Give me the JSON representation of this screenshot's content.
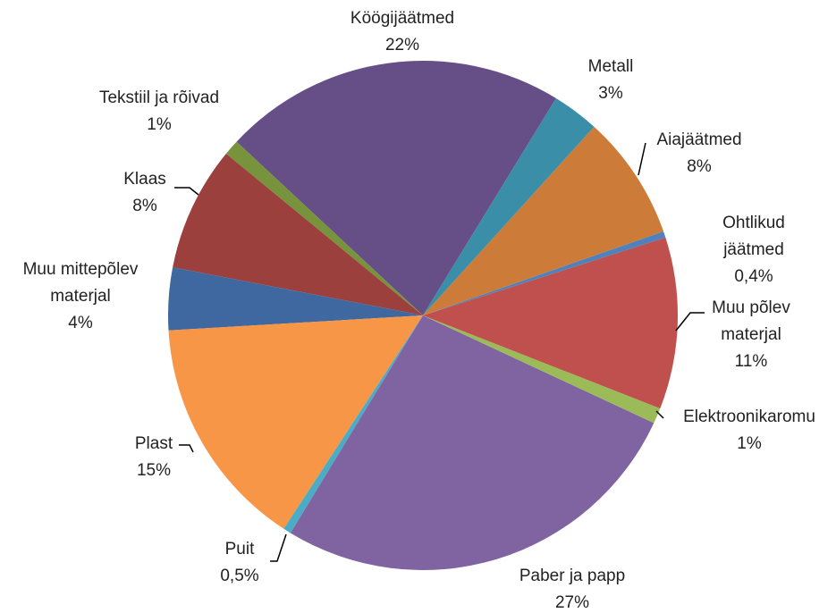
{
  "chart_data": {
    "type": "pie",
    "categories": [
      "Metall",
      "Aiajäätmed",
      "Ohtlikud jäätmed",
      "Muu põlev\nmaterjal",
      "Elektroonikaromu",
      "Paber ja papp",
      "Puit",
      "Plast",
      "Muu mittepõlev\nmaterjal",
      "Klaas",
      "Tekstiil ja rõivad",
      "Köögijäätmed"
    ],
    "values": [
      3,
      8,
      0.4,
      11,
      1,
      27,
      0.5,
      15,
      4,
      8,
      1,
      22
    ],
    "value_labels": [
      "3%",
      "8%",
      "0,4%",
      "11%",
      "1%",
      "27%",
      "0,5%",
      "15%",
      "4%",
      "8%",
      "1%",
      "22%"
    ],
    "colors": [
      "#3a8ea8",
      "#cd7b38",
      "#4f81bd",
      "#c0504d",
      "#9bbb59",
      "#8064a2",
      "#4bacc6",
      "#f79646",
      "#3f67a0",
      "#9c403d",
      "#77933c",
      "#664e87"
    ]
  }
}
